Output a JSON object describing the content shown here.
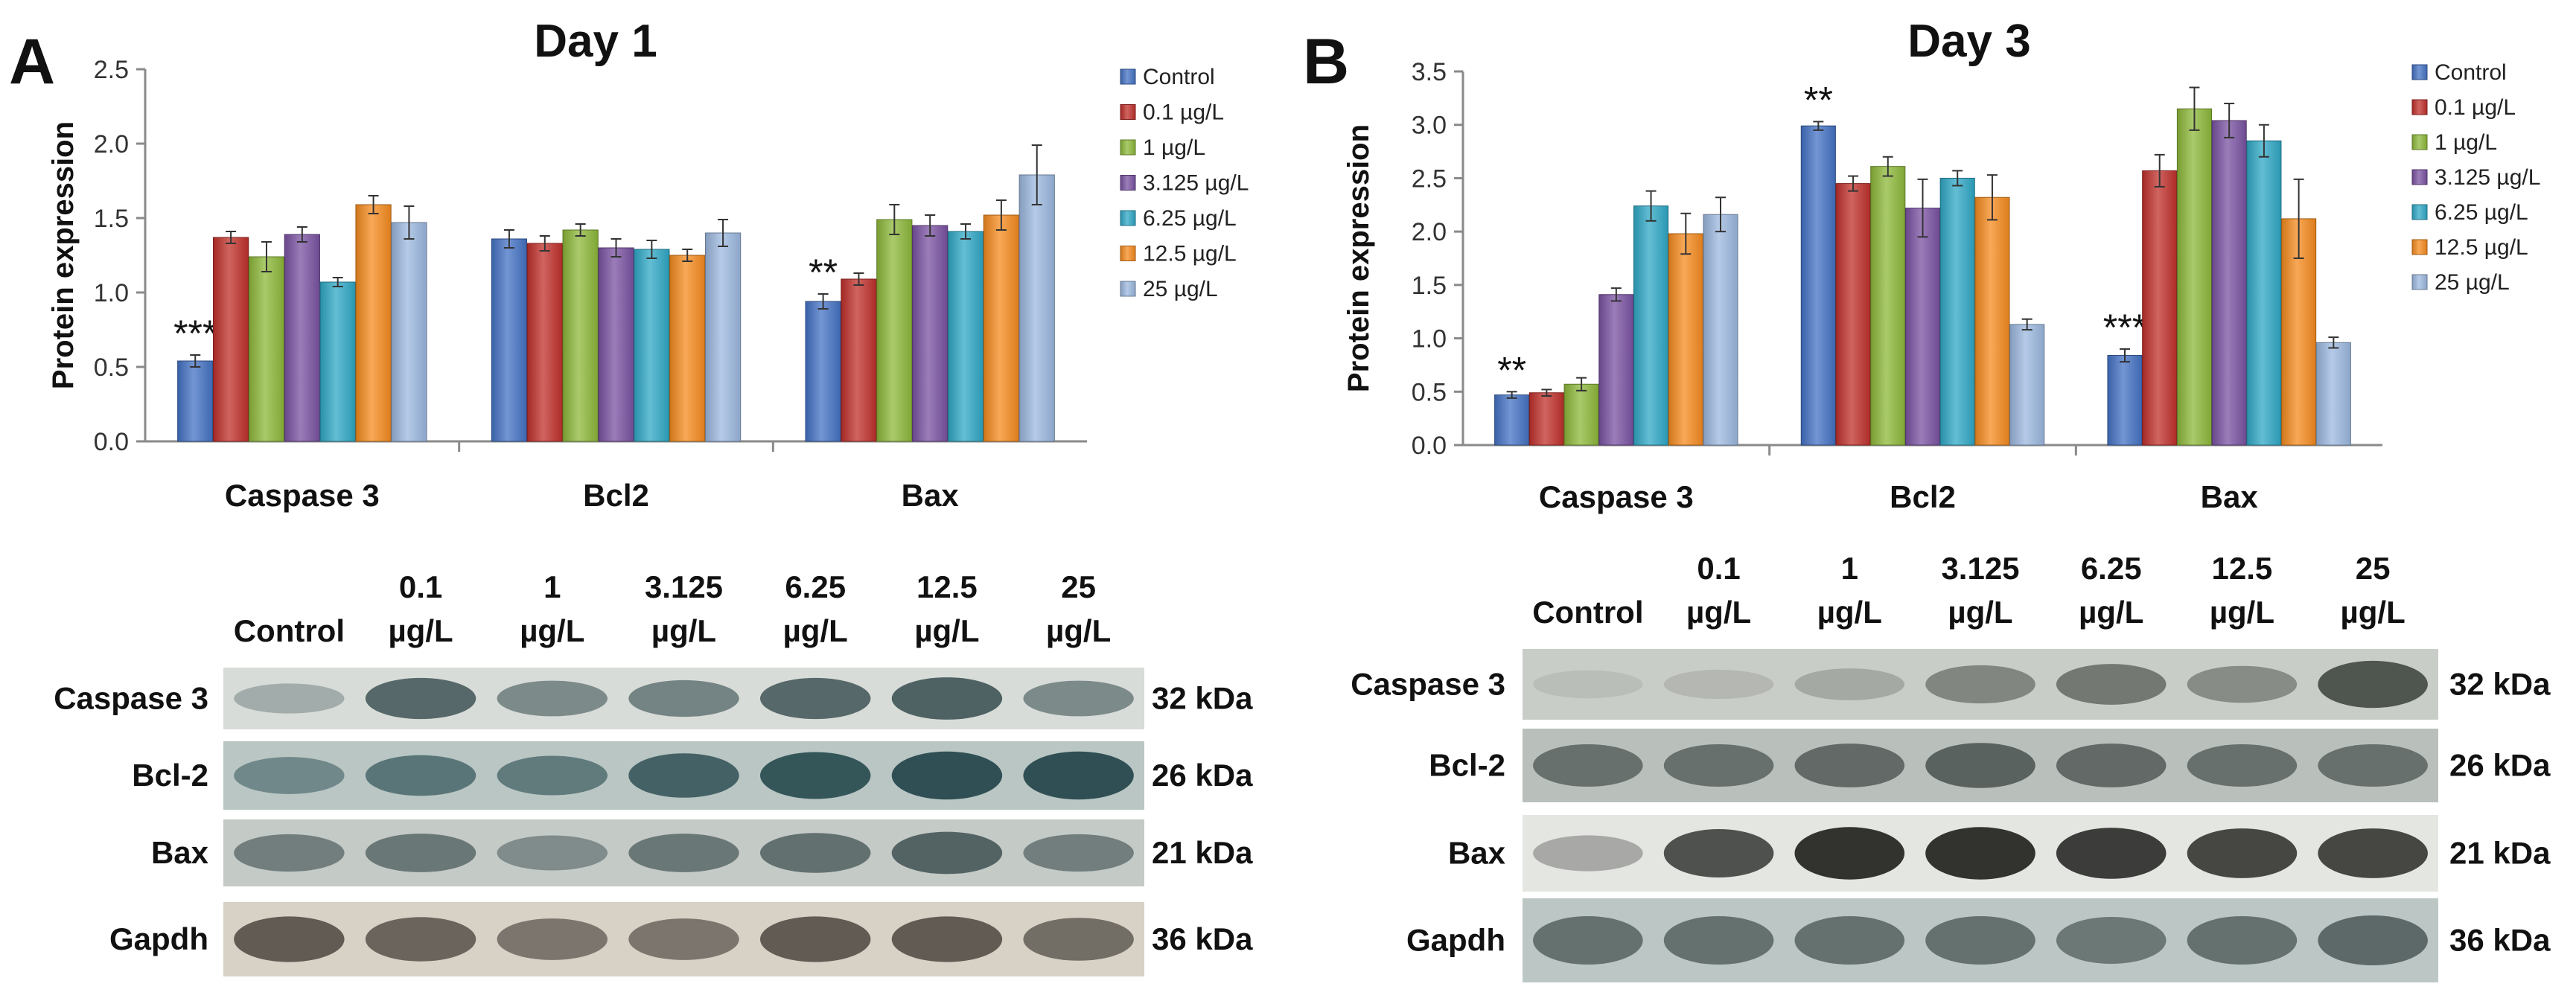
{
  "legend_colors": [
    "#4472C4",
    "#C0302B",
    "#8DB83A",
    "#7A52A2",
    "#2FA8C6",
    "#F58B1F",
    "#9CB8DF"
  ],
  "chart_data": [
    {
      "panel": "A",
      "type": "bar",
      "title": "Day 1",
      "ylabel": "Protein expression",
      "xlabel": "",
      "ylim": [
        0,
        2.5
      ],
      "yticks": [
        "0.0",
        "0.5",
        "1.0",
        "1.5",
        "2.0",
        "2.5"
      ],
      "ytick_values": [
        0,
        0.5,
        1.0,
        1.5,
        2.0,
        2.5
      ],
      "categories": [
        "Caspase 3",
        "Bcl2",
        "Bax"
      ],
      "significance": [
        "***",
        "",
        "**"
      ],
      "series": [
        {
          "name": "Control",
          "values": [
            0.54,
            1.36,
            0.94
          ],
          "errors": [
            0.04,
            0.06,
            0.05
          ]
        },
        {
          "name": "0.1 µg/L",
          "values": [
            1.37,
            1.33,
            1.09
          ],
          "errors": [
            0.04,
            0.05,
            0.04
          ]
        },
        {
          "name": "1 µg/L",
          "values": [
            1.24,
            1.42,
            1.49
          ],
          "errors": [
            0.1,
            0.04,
            0.1
          ]
        },
        {
          "name": "3.125 µg/L",
          "values": [
            1.39,
            1.3,
            1.45
          ],
          "errors": [
            0.05,
            0.06,
            0.07
          ]
        },
        {
          "name": "6.25 µg/L",
          "values": [
            1.07,
            1.29,
            1.41
          ],
          "errors": [
            0.03,
            0.06,
            0.05
          ]
        },
        {
          "name": "12.5 µg/L",
          "values": [
            1.59,
            1.25,
            1.52
          ],
          "errors": [
            0.06,
            0.04,
            0.1
          ]
        },
        {
          "name": "25 µg/L",
          "values": [
            1.47,
            1.4,
            1.79
          ],
          "errors": [
            0.11,
            0.09,
            0.2
          ]
        }
      ]
    },
    {
      "panel": "B",
      "type": "bar",
      "title": "Day 3",
      "ylabel": "Protein expression",
      "xlabel": "",
      "ylim": [
        0,
        3.5
      ],
      "yticks": [
        "0.0",
        "0.5",
        "1.0",
        "1.5",
        "2.0",
        "2.5",
        "3.0",
        "3.5"
      ],
      "ytick_values": [
        0,
        0.5,
        1.0,
        1.5,
        2.0,
        2.5,
        3.0,
        3.5
      ],
      "categories": [
        "Caspase 3",
        "Bcl2",
        "Bax"
      ],
      "significance": [
        "**",
        "**",
        "***"
      ],
      "series": [
        {
          "name": "Control",
          "values": [
            0.47,
            2.99,
            0.84
          ],
          "errors": [
            0.03,
            0.04,
            0.06
          ]
        },
        {
          "name": "0.1 µg/L",
          "values": [
            0.49,
            2.45,
            2.57
          ],
          "errors": [
            0.03,
            0.07,
            0.15
          ]
        },
        {
          "name": "1 µg/L",
          "values": [
            0.57,
            2.61,
            3.15
          ],
          "errors": [
            0.06,
            0.09,
            0.2
          ]
        },
        {
          "name": "3.125 µg/L",
          "values": [
            1.41,
            2.22,
            3.04
          ],
          "errors": [
            0.06,
            0.27,
            0.16
          ]
        },
        {
          "name": "6.25 µg/L",
          "values": [
            2.24,
            2.5,
            2.85
          ],
          "errors": [
            0.14,
            0.07,
            0.15
          ]
        },
        {
          "name": "12.5 µg/L",
          "values": [
            1.98,
            2.32,
            2.12
          ],
          "errors": [
            0.19,
            0.21,
            0.37
          ]
        },
        {
          "name": "25 µg/L",
          "values": [
            2.16,
            1.13,
            0.96
          ],
          "errors": [
            0.16,
            0.05,
            0.05
          ]
        }
      ]
    }
  ],
  "blots": [
    {
      "panel": "A",
      "lanes": [
        {
          "line1": "",
          "line2": "Control"
        },
        {
          "line1": "0.1",
          "line2": "µg/L"
        },
        {
          "line1": "1",
          "line2": "µg/L"
        },
        {
          "line1": "3.125",
          "line2": "µg/L"
        },
        {
          "line1": "6.25",
          "line2": "µg/L"
        },
        {
          "line1": "12.5",
          "line2": "µg/L"
        },
        {
          "line1": "25",
          "line2": "µg/L"
        }
      ],
      "rows": [
        {
          "name": "Caspase 3",
          "kda": "32 kDa",
          "bg": "#d8dcd8",
          "band": "#3f5356",
          "intensity": [
            0.35,
            0.85,
            0.6,
            0.65,
            0.85,
            0.9,
            0.6
          ]
        },
        {
          "name": "Bcl-2",
          "kda": "26 kDa",
          "bg": "#b9c6c4",
          "band": "#27494e",
          "intensity": [
            0.5,
            0.65,
            0.6,
            0.8,
            0.9,
            0.95,
            0.95
          ]
        },
        {
          "name": "Bax",
          "kda": "21 kDa",
          "bg": "#c4cac6",
          "band": "#2e3f42",
          "intensity": [
            0.55,
            0.6,
            0.45,
            0.6,
            0.65,
            0.75,
            0.55
          ]
        },
        {
          "name": "Gapdh",
          "kda": "36 kDa",
          "bg": "#d8d1c6",
          "band": "#2f2a24",
          "intensity": [
            0.7,
            0.65,
            0.55,
            0.55,
            0.7,
            0.7,
            0.6
          ]
        }
      ]
    },
    {
      "panel": "B",
      "lanes": [
        {
          "line1": "",
          "line2": "Control"
        },
        {
          "line1": "0.1",
          "line2": "µg/L"
        },
        {
          "line1": "1",
          "line2": "µg/L"
        },
        {
          "line1": "3.125",
          "line2": "µg/L"
        },
        {
          "line1": "6.25",
          "line2": "µg/L"
        },
        {
          "line1": "12.5",
          "line2": "µg/L"
        },
        {
          "line1": "25",
          "line2": "µg/L"
        }
      ],
      "rows": [
        {
          "name": "Caspase 3",
          "kda": "32 kDa",
          "bg": "#c9cdc7",
          "band": "#3a3f3a",
          "intensity": [
            0.1,
            0.15,
            0.25,
            0.5,
            0.6,
            0.45,
            0.85
          ]
        },
        {
          "name": "Bcl-2",
          "kda": "26 kDa",
          "bg": "#b9c0bb",
          "band": "#323b39",
          "intensity": [
            0.6,
            0.6,
            0.65,
            0.7,
            0.65,
            0.6,
            0.6
          ]
        },
        {
          "name": "Bax",
          "kda": "21 kDa",
          "bg": "#e4e6e2",
          "band": "#1e1f1c",
          "intensity": [
            0.3,
            0.75,
            0.9,
            0.9,
            0.85,
            0.8,
            0.8
          ]
        },
        {
          "name": "Gapdh",
          "kda": "36 kDa",
          "bg": "#bcc6c4",
          "band": "#2a3837",
          "intensity": [
            0.6,
            0.6,
            0.6,
            0.6,
            0.55,
            0.6,
            0.65
          ]
        }
      ]
    }
  ]
}
